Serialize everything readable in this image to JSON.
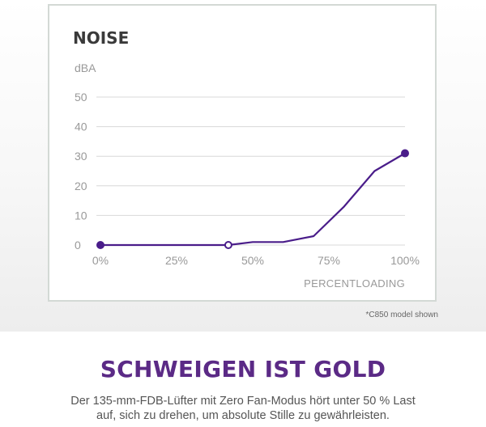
{
  "colors": {
    "accent": "#5b2a86",
    "line": "#4a1d8a",
    "grid": "#d8d8d8",
    "tick_label": "#999999",
    "title": "#3a3a3a"
  },
  "chart_data": {
    "type": "line",
    "title": "NOISE",
    "ylabel": "dBA",
    "xlabel": "PERCENTLOADING",
    "x_ticks": [
      "0%",
      "25%",
      "50%",
      "75%",
      "100%"
    ],
    "y_ticks": [
      "0",
      "10",
      "20",
      "30",
      "40",
      "50"
    ],
    "xlim": [
      0,
      100
    ],
    "ylim": [
      0,
      50
    ],
    "grid": true,
    "series": [
      {
        "points": [
          {
            "x": 0,
            "y": 0
          },
          {
            "x": 42,
            "y": 0
          },
          {
            "x": 50,
            "y": 1
          },
          {
            "x": 60,
            "y": 1
          },
          {
            "x": 70,
            "y": 3
          },
          {
            "x": 80,
            "y": 13
          },
          {
            "x": 90,
            "y": 25
          },
          {
            "x": 100,
            "y": 31
          }
        ],
        "markers": [
          {
            "x": 0,
            "y": 0,
            "style": "filled"
          },
          {
            "x": 42,
            "y": 0,
            "style": "hollow"
          },
          {
            "x": 100,
            "y": 31,
            "style": "filled"
          }
        ]
      }
    ]
  },
  "footnote": "*C850 model shown",
  "headline": "SCHWEIGEN IST GOLD",
  "description": {
    "line1": "Der 135-mm-FDB-Lüfter mit Zero Fan-Modus hört unter 50 % Last",
    "line2": "auf, sich zu drehen, um absolute Stille zu gewährleisten."
  }
}
